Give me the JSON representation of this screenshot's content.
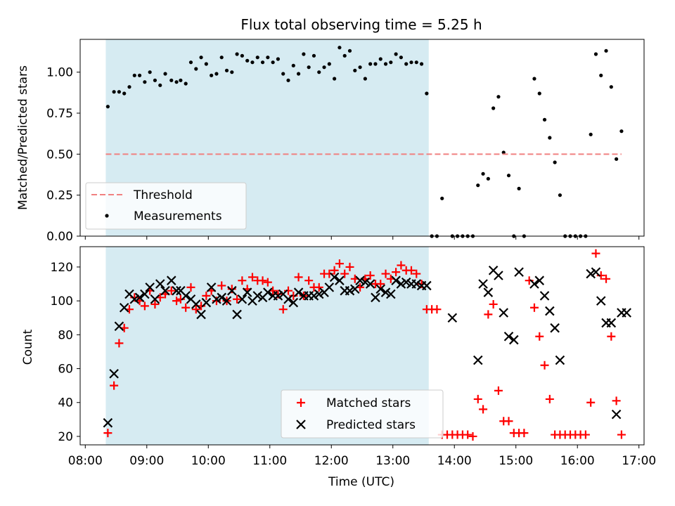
{
  "title": "Flux total observing time = 5.25 h",
  "colors": {
    "shade": "#add8e6",
    "threshold": "#f08080",
    "matched": "#ff0000",
    "predicted": "#000000",
    "measurement": "#000000"
  },
  "chart_data": [
    {
      "type": "scatter",
      "ylabel": "Matched/Predicted stars",
      "ylim": [
        0.0,
        1.2
      ],
      "yticks": [
        "0.00",
        "0.25",
        "0.50",
        "0.75",
        "1.00"
      ],
      "shaded_region": [
        "08:20",
        "13:35"
      ],
      "threshold": 0.5,
      "legend_position": "lower-left",
      "legend": [
        {
          "label": "Threshold",
          "kind": "dashed-line"
        },
        {
          "label": "Measurements",
          "kind": "dot"
        }
      ],
      "series": [
        {
          "name": "Measurements",
          "x": [
            "08:22",
            "08:28",
            "08:33",
            "08:38",
            "08:43",
            "08:48",
            "08:53",
            "08:58",
            "09:03",
            "09:08",
            "09:13",
            "09:18",
            "09:24",
            "09:29",
            "09:33",
            "09:38",
            "09:43",
            "09:48",
            "09:53",
            "09:58",
            "10:03",
            "10:08",
            "10:13",
            "10:18",
            "10:23",
            "10:28",
            "10:33",
            "10:38",
            "10:43",
            "10:48",
            "10:53",
            "10:58",
            "11:03",
            "11:08",
            "11:13",
            "11:18",
            "11:23",
            "11:28",
            "11:33",
            "11:38",
            "11:43",
            "11:48",
            "11:53",
            "11:58",
            "12:03",
            "12:08",
            "12:13",
            "12:18",
            "12:23",
            "12:28",
            "12:33",
            "12:38",
            "12:43",
            "12:48",
            "12:53",
            "12:58",
            "13:03",
            "13:08",
            "13:13",
            "13:18",
            "13:23",
            "13:28",
            "13:33",
            "13:38",
            "13:43",
            "13:48",
            "13:58",
            "14:03",
            "14:08",
            "14:13",
            "14:18",
            "14:23",
            "14:28",
            "14:33",
            "14:38",
            "14:43",
            "14:48",
            "14:53",
            "14:58",
            "15:03",
            "15:08",
            "15:18",
            "15:23",
            "15:28",
            "15:33",
            "15:38",
            "15:43",
            "15:48",
            "15:53",
            "15:58",
            "16:03",
            "16:08",
            "16:13",
            "16:18",
            "16:23",
            "16:28",
            "16:33",
            "16:38",
            "16:43"
          ],
          "values": [
            0.79,
            0.88,
            0.88,
            0.87,
            0.91,
            0.98,
            0.98,
            0.94,
            1.0,
            0.95,
            0.92,
            0.99,
            0.95,
            0.94,
            0.95,
            0.93,
            1.06,
            1.02,
            1.09,
            1.05,
            0.98,
            0.99,
            1.09,
            1.01,
            1.0,
            1.11,
            1.1,
            1.07,
            1.06,
            1.09,
            1.06,
            1.09,
            1.06,
            1.08,
            0.99,
            0.95,
            1.04,
            0.99,
            1.11,
            1.03,
            1.1,
            1.0,
            1.03,
            1.05,
            0.96,
            1.15,
            1.1,
            1.13,
            1.01,
            1.03,
            0.96,
            1.05,
            1.05,
            1.08,
            1.05,
            1.06,
            1.11,
            1.09,
            1.05,
            1.06,
            1.06,
            1.05,
            0.87,
            0.0,
            0.0,
            0.23,
            0.0,
            0.0,
            0.0,
            0.0,
            0.0,
            0.31,
            0.38,
            0.35,
            0.78,
            0.85,
            0.51,
            0.37,
            0.0,
            0.29,
            0.0,
            0.96,
            0.87,
            0.71,
            0.6,
            0.45,
            0.25,
            0.0,
            0.0,
            0.0,
            0.0,
            0.0,
            0.62,
            1.11,
            0.98,
            1.13,
            0.91,
            0.47,
            0.64
          ]
        }
      ]
    },
    {
      "type": "scatter",
      "ylabel": "Count",
      "xlabel": "Time (UTC)",
      "ylim": [
        15,
        132
      ],
      "yticks": [
        "20",
        "40",
        "60",
        "80",
        "100",
        "120"
      ],
      "xticks": [
        "08:00",
        "09:00",
        "10:00",
        "11:00",
        "12:00",
        "13:00",
        "14:00",
        "15:00",
        "16:00",
        "17:00"
      ],
      "xlim": [
        "07:55",
        "17:05"
      ],
      "shaded_region": [
        "08:20",
        "13:35"
      ],
      "legend_position": "lower-center",
      "legend": [
        {
          "label": "Matched stars",
          "kind": "plus"
        },
        {
          "label": "Predicted stars",
          "kind": "cross"
        }
      ],
      "series": [
        {
          "name": "Matched stars",
          "x": [
            "08:22",
            "08:28",
            "08:33",
            "08:38",
            "08:43",
            "08:48",
            "08:53",
            "08:58",
            "09:03",
            "09:08",
            "09:13",
            "09:18",
            "09:24",
            "09:29",
            "09:33",
            "09:38",
            "09:43",
            "09:48",
            "09:53",
            "09:58",
            "10:03",
            "10:08",
            "10:13",
            "10:18",
            "10:23",
            "10:28",
            "10:33",
            "10:38",
            "10:43",
            "10:48",
            "10:53",
            "10:58",
            "11:03",
            "11:08",
            "11:13",
            "11:18",
            "11:23",
            "11:28",
            "11:33",
            "11:38",
            "11:43",
            "11:48",
            "11:53",
            "11:58",
            "12:03",
            "12:08",
            "12:13",
            "12:18",
            "12:23",
            "12:28",
            "12:33",
            "12:38",
            "12:43",
            "12:48",
            "12:53",
            "12:58",
            "13:03",
            "13:08",
            "13:13",
            "13:18",
            "13:23",
            "13:28",
            "13:33",
            "13:38",
            "13:43",
            "13:48",
            "13:53",
            "13:58",
            "14:03",
            "14:08",
            "14:13",
            "14:18",
            "14:23",
            "14:28",
            "14:33",
            "14:38",
            "14:43",
            "14:48",
            "14:53",
            "14:58",
            "15:03",
            "15:08",
            "15:13",
            "15:18",
            "15:23",
            "15:28",
            "15:33",
            "15:38",
            "15:43",
            "15:48",
            "15:53",
            "15:58",
            "16:03",
            "16:08",
            "16:13",
            "16:18",
            "16:23",
            "16:28",
            "16:33",
            "16:38",
            "16:43"
          ],
          "values": [
            22,
            50,
            75,
            84,
            95,
            102,
            100,
            97,
            106,
            98,
            102,
            104,
            106,
            100,
            101,
            96,
            108,
            95,
            97,
            103,
            106,
            100,
            109,
            100,
            107,
            101,
            112,
            107,
            114,
            112,
            112,
            111,
            106,
            104,
            95,
            106,
            103,
            114,
            103,
            112,
            108,
            108,
            116,
            116,
            118,
            122,
            116,
            120,
            113,
            108,
            113,
            115,
            110,
            110,
            116,
            113,
            117,
            121,
            118,
            118,
            116,
            110,
            95,
            95,
            95,
            21,
            21,
            21,
            21,
            21,
            21,
            20,
            42,
            36,
            92,
            98,
            47,
            29,
            29,
            22,
            22,
            22,
            112,
            96,
            79,
            62,
            42,
            21,
            21,
            21,
            21,
            21,
            21,
            21,
            40,
            128,
            115,
            113,
            79,
            41,
            21
          ]
        },
        {
          "name": "Predicted stars",
          "x": [
            "08:22",
            "08:28",
            "08:33",
            "08:38",
            "08:43",
            "08:48",
            "08:53",
            "08:58",
            "09:03",
            "09:08",
            "09:13",
            "09:18",
            "09:24",
            "09:29",
            "09:33",
            "09:38",
            "09:43",
            "09:48",
            "09:53",
            "09:58",
            "10:03",
            "10:08",
            "10:13",
            "10:18",
            "10:23",
            "10:28",
            "10:33",
            "10:38",
            "10:43",
            "10:48",
            "10:53",
            "10:58",
            "11:03",
            "11:08",
            "11:13",
            "11:18",
            "11:23",
            "11:28",
            "11:33",
            "11:38",
            "11:43",
            "11:48",
            "11:53",
            "11:58",
            "12:03",
            "12:08",
            "12:13",
            "12:18",
            "12:23",
            "12:28",
            "12:33",
            "12:38",
            "12:43",
            "12:48",
            "12:53",
            "12:58",
            "13:03",
            "13:08",
            "13:13",
            "13:18",
            "13:23",
            "13:28",
            "13:33",
            "13:58",
            "14:23",
            "14:28",
            "14:33",
            "14:38",
            "14:43",
            "14:48",
            "14:53",
            "14:58",
            "15:03",
            "15:18",
            "15:23",
            "15:28",
            "15:33",
            "15:38",
            "15:43",
            "16:13",
            "16:18",
            "16:23",
            "16:28",
            "16:33",
            "16:38",
            "16:43",
            "16:48"
          ],
          "values": [
            28,
            57,
            85,
            96,
            104,
            101,
            102,
            104,
            108,
            101,
            110,
            106,
            112,
            106,
            106,
            103,
            101,
            98,
            92,
            99,
            108,
            101,
            102,
            100,
            106,
            92,
            101,
            105,
            100,
            103,
            102,
            105,
            103,
            103,
            104,
            101,
            99,
            105,
            103,
            103,
            103,
            104,
            105,
            108,
            114,
            112,
            106,
            106,
            107,
            112,
            111,
            110,
            102,
            107,
            105,
            104,
            112,
            110,
            111,
            110,
            110,
            109,
            109,
            90,
            65,
            110,
            105,
            118,
            115,
            93,
            79,
            77,
            117,
            110,
            112,
            103,
            94,
            84,
            65,
            116,
            117,
            100,
            87,
            87,
            33,
            93,
            93
          ]
        }
      ]
    }
  ]
}
